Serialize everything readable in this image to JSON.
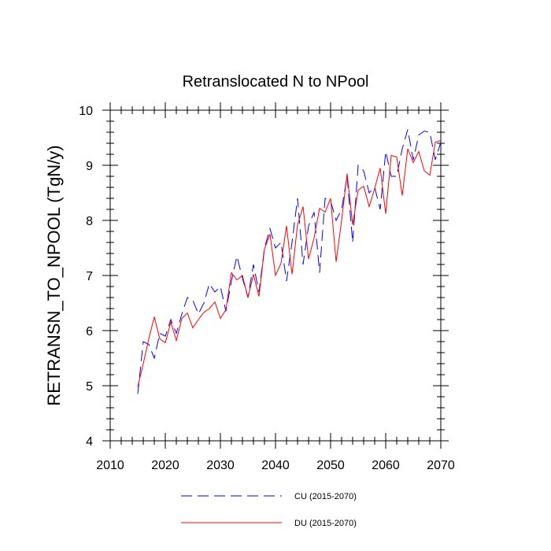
{
  "chart_data": {
    "type": "line",
    "title": "Retranslocated N to NPool",
    "xlabel": "",
    "ylabel": "RETRANSN_TO_NPOOL  (TgN/y)",
    "xlim": [
      2010,
      2070
    ],
    "ylim": [
      4,
      10
    ],
    "xticks": [
      2010,
      2020,
      2030,
      2040,
      2050,
      2060,
      2070
    ],
    "yticks": [
      4,
      5,
      6,
      7,
      8,
      9,
      10
    ],
    "x": [
      2015,
      2016,
      2017,
      2018,
      2019,
      2020,
      2021,
      2022,
      2023,
      2024,
      2025,
      2026,
      2027,
      2028,
      2029,
      2030,
      2031,
      2032,
      2033,
      2034,
      2035,
      2036,
      2037,
      2038,
      2039,
      2040,
      2041,
      2042,
      2043,
      2044,
      2045,
      2046,
      2047,
      2048,
      2049,
      2050,
      2051,
      2052,
      2053,
      2054,
      2055,
      2056,
      2057,
      2058,
      2059,
      2060,
      2061,
      2062,
      2063,
      2064,
      2065,
      2066,
      2067,
      2068,
      2069,
      2070
    ],
    "series": [
      {
        "name": "CU (2015-2070)",
        "color": "#0000ff",
        "style": "dashed",
        "values": [
          4.85,
          5.8,
          5.75,
          5.5,
          5.95,
          5.9,
          6.2,
          5.95,
          6.3,
          6.6,
          6.55,
          6.3,
          6.5,
          6.85,
          6.7,
          6.8,
          6.35,
          6.9,
          7.35,
          6.95,
          6.6,
          7.2,
          6.7,
          7.5,
          7.85,
          7.5,
          7.6,
          6.9,
          7.6,
          8.4,
          7.2,
          7.9,
          8.15,
          7.05,
          8.4,
          8.35,
          8.0,
          8.2,
          8.8,
          7.6,
          9.0,
          8.9,
          8.5,
          8.6,
          8.2,
          9.25,
          8.8,
          8.8,
          9.3,
          9.65,
          9.1,
          9.55,
          9.62,
          9.6,
          9.1,
          9.42
        ]
      },
      {
        "name": "DU (2015-2070)",
        "color": "#ff0000",
        "style": "solid",
        "values": [
          4.98,
          5.4,
          5.85,
          6.25,
          5.85,
          5.78,
          6.15,
          5.82,
          6.22,
          6.32,
          6.05,
          6.2,
          6.33,
          6.4,
          6.52,
          6.22,
          6.38,
          7.05,
          6.92,
          7.0,
          6.6,
          7.02,
          6.62,
          7.48,
          7.75,
          7.0,
          7.22,
          7.9,
          7.02,
          7.92,
          8.25,
          7.3,
          7.68,
          8.22,
          8.15,
          8.4,
          7.25,
          8.0,
          8.85,
          7.92,
          8.55,
          8.62,
          8.25,
          8.58,
          8.95,
          8.12,
          9.18,
          9.15,
          8.45,
          9.3,
          9.05,
          9.25,
          8.9,
          8.82,
          9.42,
          9.45
        ]
      }
    ],
    "legend": "bottom"
  }
}
